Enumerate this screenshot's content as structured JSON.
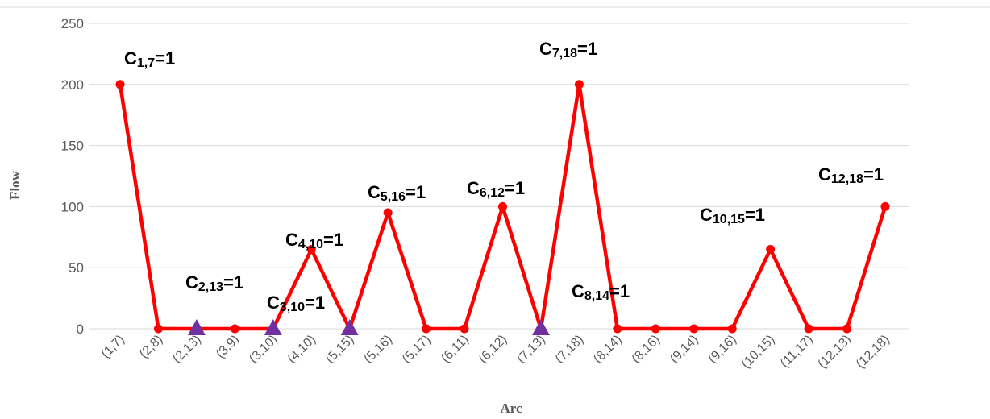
{
  "chart_data": {
    "type": "line",
    "xlabel": "Arc",
    "ylabel": "Flow",
    "ylim": [
      0,
      250
    ],
    "yticks": [
      0,
      50,
      100,
      150,
      200,
      250
    ],
    "grid": true,
    "categories": [
      "(1,7)",
      "(2,8)",
      "(2,13)",
      "(3,9)",
      "(3,10)",
      "(4,10)",
      "(5,15)",
      "(5,16)",
      "(5,17)",
      "(6,11)",
      "(6,12)",
      "(7,13)",
      "(7,18)",
      "(8,14)",
      "(8,16)",
      "(9,14)",
      "(9,16)",
      "(10,15)",
      "(11,17)",
      "(12,13)",
      "(12,18)"
    ],
    "series": [
      {
        "values": [
          200,
          0,
          0,
          0,
          0,
          65,
          0,
          95,
          0,
          0,
          100,
          0,
          200,
          0,
          0,
          0,
          0,
          65,
          0,
          0,
          100
        ],
        "markers": [
          "circle",
          "circle",
          "triangle",
          "circle",
          "triangle",
          "circle",
          "triangle",
          "circle",
          "circle",
          "circle",
          "circle",
          "triangle",
          "circle",
          "circle",
          "circle",
          "circle",
          "circle",
          "circle",
          "circle",
          "circle",
          "circle"
        ],
        "line_color": "#ff0000",
        "triangle_color": "#7030a0"
      }
    ],
    "annotations": [
      {
        "base": "C",
        "sub": "1,7",
        "rest": "=1"
      },
      {
        "base": "C",
        "sub": "2,13",
        "rest": "=1"
      },
      {
        "base": "C",
        "sub": "3,10",
        "rest": "=1"
      },
      {
        "base": "C",
        "sub": "4,10",
        "rest": "=1"
      },
      {
        "base": "C",
        "sub": "5,16",
        "rest": "=1"
      },
      {
        "base": "C",
        "sub": "6,12",
        "rest": "=1"
      },
      {
        "base": "C",
        "sub": "7,18",
        "rest": "=1"
      },
      {
        "base": "C",
        "sub": "8,14",
        "rest": "=1"
      },
      {
        "base": "C",
        "sub": "10,15",
        "rest": "=1"
      },
      {
        "base": "C",
        "sub": "12,18",
        "rest": "=1"
      }
    ]
  }
}
